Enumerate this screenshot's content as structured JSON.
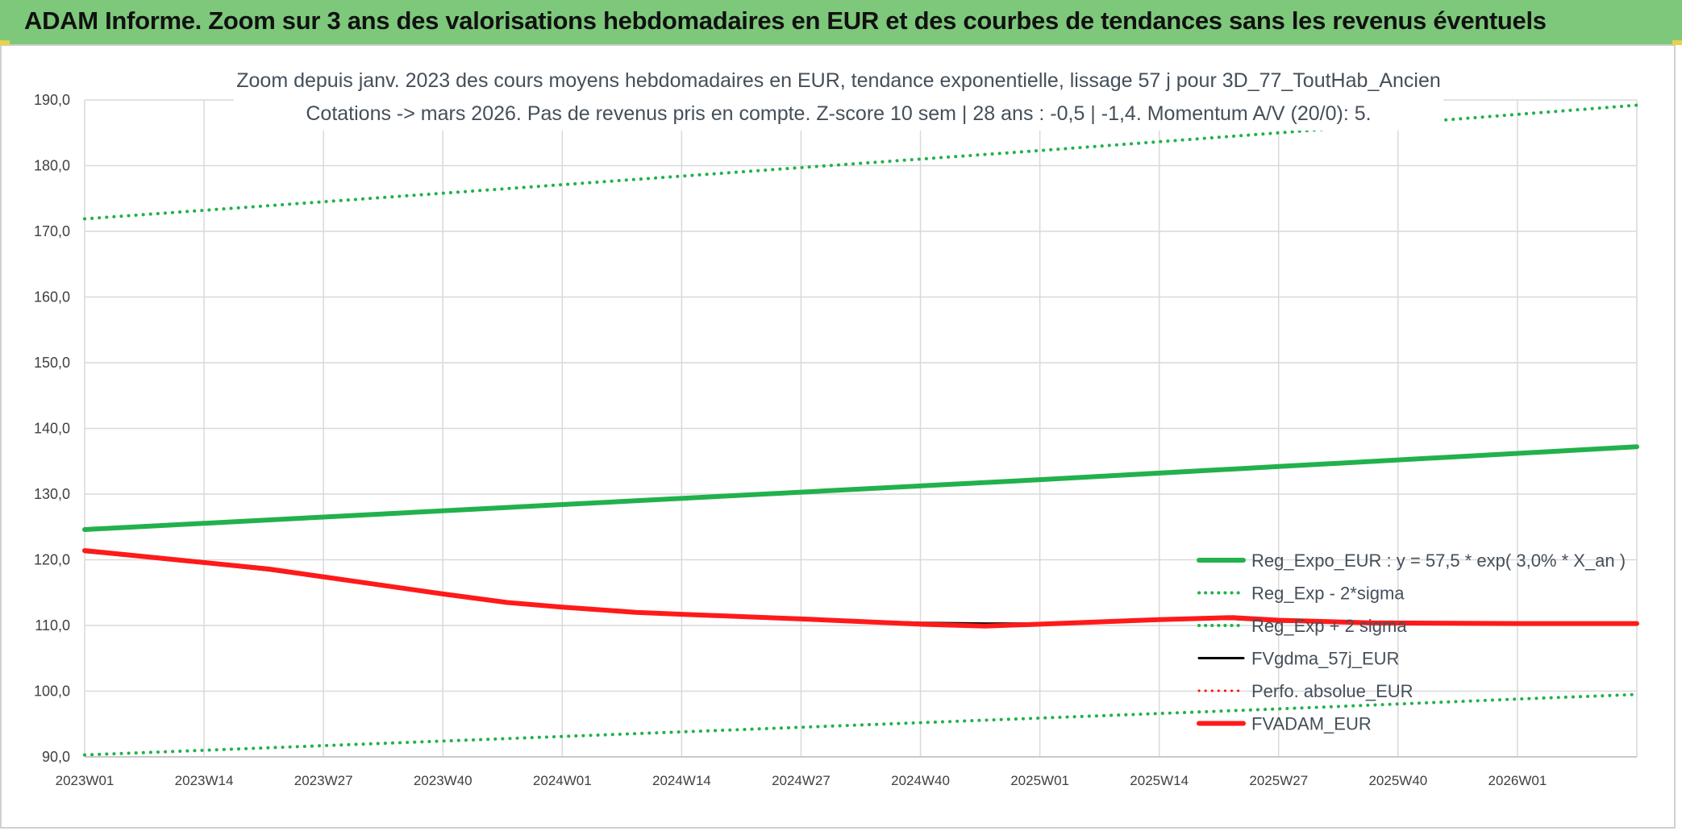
{
  "header": {
    "title": "ADAM Informe. Zoom sur 3 ans des valorisations hebdomadaires en EUR et des courbes de tendances sans les revenus éventuels",
    "background": "#7dc87a"
  },
  "chart_data": {
    "type": "line",
    "title": "Zoom depuis janv. 2023 des cours moyens hebdomadaires en EUR, tendance exponentielle, lissage 57 j pour 3D_77_ToutHab_Ancien",
    "subtitle": "Cotations -> mars 2026. Pas de revenus pris en compte. Z-score 10 sem | 28 ans : -0,5 | -1,4. Momentum A/V (20/0): 5.",
    "xlabel": "",
    "ylabel": "",
    "ylim": [
      90,
      190
    ],
    "yticks": [
      "90,0",
      "100,0",
      "110,0",
      "120,0",
      "130,0",
      "140,0",
      "150,0",
      "160,0",
      "170,0",
      "180,0",
      "190,0"
    ],
    "xlim": [
      0,
      169
    ],
    "xticks": [
      {
        "label": "2023W01",
        "x": 0
      },
      {
        "label": "2023W14",
        "x": 13
      },
      {
        "label": "2023W27",
        "x": 26
      },
      {
        "label": "2023W40",
        "x": 39
      },
      {
        "label": "2024W01",
        "x": 52
      },
      {
        "label": "2024W14",
        "x": 65
      },
      {
        "label": "2024W27",
        "x": 78
      },
      {
        "label": "2024W40",
        "x": 91
      },
      {
        "label": "2025W01",
        "x": 104
      },
      {
        "label": "2025W14",
        "x": 117
      },
      {
        "label": "2025W27",
        "x": 130
      },
      {
        "label": "2025W40",
        "x": 143
      },
      {
        "label": "2026W01",
        "x": 156
      }
    ],
    "grid": true,
    "legend_position": "lower-right",
    "series": [
      {
        "name": "Reg_Expo_EUR : y = 57,5 * exp( 3,0% *  X_an )",
        "color": "#22b14c",
        "style": "solid",
        "width": 6,
        "points": [
          [
            0,
            124.6
          ],
          [
            26,
            126.5
          ],
          [
            52,
            128.4
          ],
          [
            78,
            130.3
          ],
          [
            104,
            132.2
          ],
          [
            130,
            134.2
          ],
          [
            156,
            136.2
          ],
          [
            169,
            137.2
          ]
        ]
      },
      {
        "name": "Reg_Exp - 2*sigma",
        "color": "#22b14c",
        "style": "dotted",
        "width": 4,
        "points": [
          [
            0,
            90.3
          ],
          [
            26,
            91.7
          ],
          [
            52,
            93.1
          ],
          [
            78,
            94.5
          ],
          [
            104,
            95.9
          ],
          [
            130,
            97.3
          ],
          [
            156,
            98.8
          ],
          [
            169,
            99.5
          ]
        ]
      },
      {
        "name": "Reg_Exp + 2 sigma",
        "color": "#22b14c",
        "style": "dotted",
        "width": 4,
        "points": [
          [
            0,
            171.9
          ],
          [
            26,
            174.5
          ],
          [
            52,
            177.1
          ],
          [
            78,
            179.7
          ],
          [
            104,
            182.3
          ],
          [
            130,
            185.0
          ],
          [
            156,
            187.8
          ],
          [
            169,
            189.2
          ]
        ]
      },
      {
        "name": "FVgdma_57j_EUR",
        "color": "#000000",
        "style": "solid",
        "width": 3,
        "points": [
          [
            0,
            121.2
          ],
          [
            10,
            119.9
          ],
          [
            20,
            118.4
          ],
          [
            30,
            116.5
          ],
          [
            39,
            114.8
          ],
          [
            46,
            113.6
          ],
          [
            52,
            112.8
          ],
          [
            60,
            112.1
          ],
          [
            65,
            111.7
          ],
          [
            78,
            111.0
          ],
          [
            91,
            110.4
          ],
          [
            98,
            110.3
          ],
          [
            104,
            110.3
          ],
          [
            117,
            110.9
          ],
          [
            125,
            111.0
          ],
          [
            130,
            110.6
          ],
          [
            140,
            110.4
          ],
          [
            156,
            110.3
          ],
          [
            169,
            110.3
          ]
        ]
      },
      {
        "name": "Perfo. absolue_EUR",
        "color": "#ff0000",
        "style": "dotted",
        "width": 3,
        "points": []
      },
      {
        "name": "FVADAM_EUR",
        "color": "#ff1a1a",
        "style": "solid",
        "width": 6,
        "points": [
          [
            0,
            121.4
          ],
          [
            10,
            120.0
          ],
          [
            20,
            118.6
          ],
          [
            30,
            116.6
          ],
          [
            39,
            114.8
          ],
          [
            46,
            113.5
          ],
          [
            52,
            112.8
          ],
          [
            60,
            112.0
          ],
          [
            65,
            111.7
          ],
          [
            78,
            111.0
          ],
          [
            91,
            110.2
          ],
          [
            98,
            109.9
          ],
          [
            104,
            110.2
          ],
          [
            117,
            110.9
          ],
          [
            125,
            111.2
          ],
          [
            130,
            110.8
          ],
          [
            140,
            110.4
          ],
          [
            156,
            110.3
          ],
          [
            169,
            110.3
          ]
        ]
      }
    ]
  }
}
